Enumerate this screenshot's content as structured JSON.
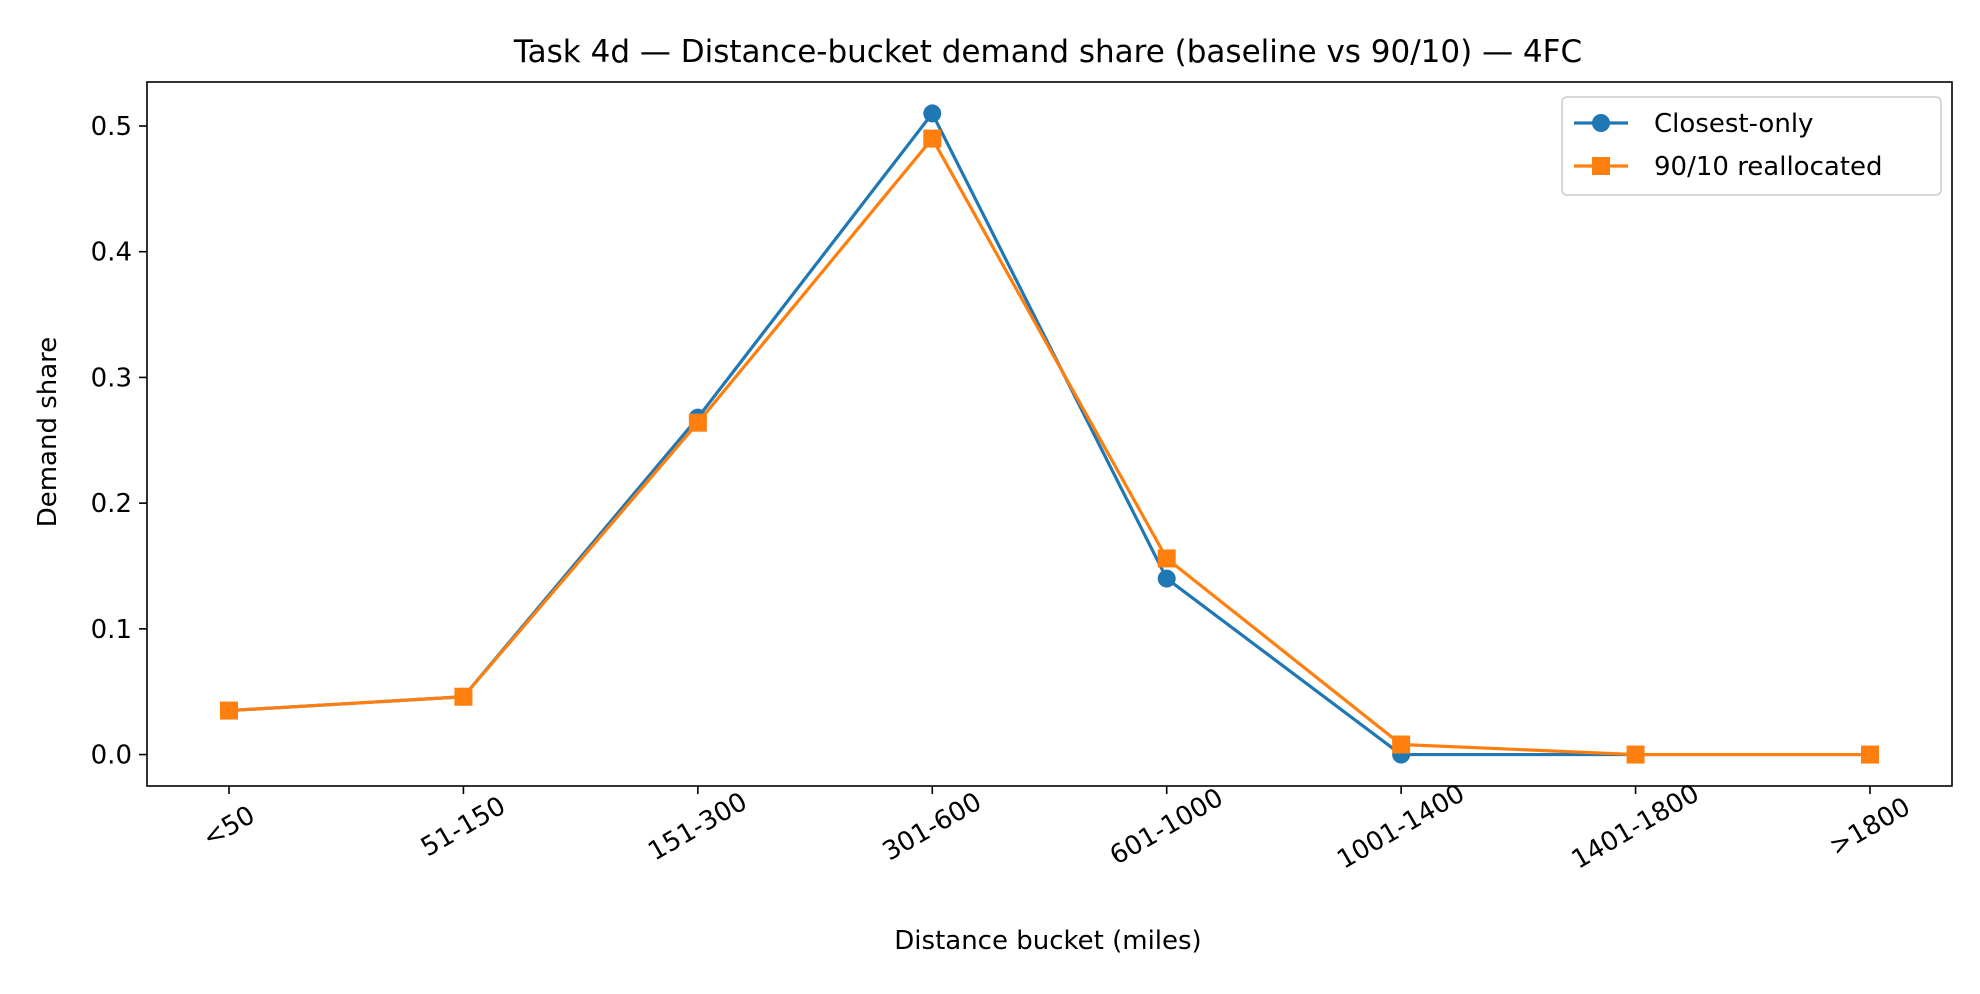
{
  "chart_data": {
    "type": "line",
    "title": "Task 4d — Distance-bucket demand share (baseline vs 90/10) — 4FC",
    "xlabel": "Distance bucket (miles)",
    "ylabel": "Demand share",
    "categories": [
      "<50",
      "51-150",
      "151-300",
      "301-600",
      "601-1000",
      "1001-1400",
      "1401-1800",
      ">1800"
    ],
    "ylim": [
      -0.025,
      0.535
    ],
    "yticks": [
      0.0,
      0.1,
      0.2,
      0.3,
      0.4,
      0.5
    ],
    "ytick_labels": [
      "0.0",
      "0.1",
      "0.2",
      "0.3",
      "0.4",
      "0.5"
    ],
    "grid": false,
    "legend_position": "top-right",
    "series": [
      {
        "name": "Closest-only",
        "color": "#1f77b4",
        "marker": "circle",
        "values": [
          0.035,
          0.046,
          0.268,
          0.51,
          0.14,
          0.0,
          0.0,
          0.0
        ]
      },
      {
        "name": "90/10 reallocated",
        "color": "#ff7f0e",
        "marker": "square",
        "values": [
          0.035,
          0.046,
          0.264,
          0.49,
          0.156,
          0.008,
          0.0,
          0.0
        ]
      }
    ]
  }
}
